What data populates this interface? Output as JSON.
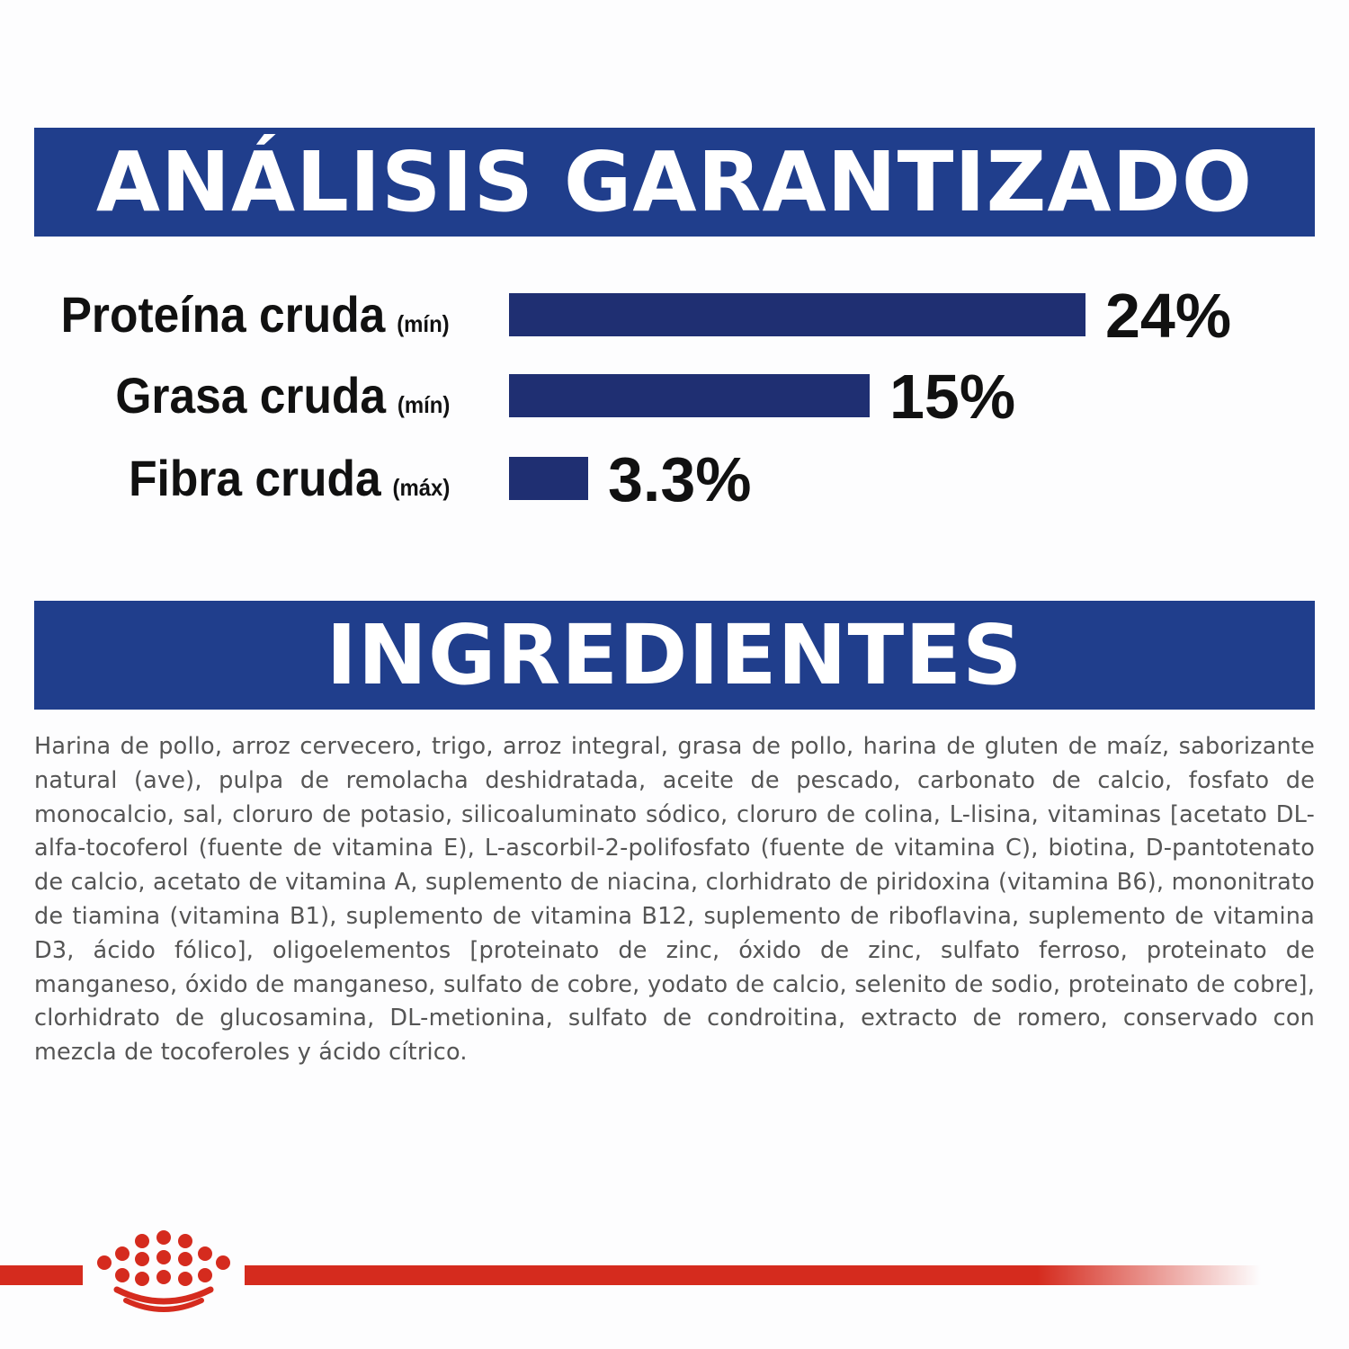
{
  "analysis": {
    "title": "ANÁLISIS GARANTIZADO",
    "rows": [
      {
        "name": "Proteína cruda",
        "qualifier": "(mín)",
        "value": 24,
        "value_label": "24%"
      },
      {
        "name": "Grasa cruda",
        "qualifier": "(mín)",
        "value": 15,
        "value_label": "15%"
      },
      {
        "name": "Fibra cruda",
        "qualifier": "(máx)",
        "value": 3.3,
        "value_label": "3.3%"
      }
    ]
  },
  "ingredients": {
    "title": "INGREDIENTES",
    "text": "Harina de pollo, arroz cervecero, trigo, arroz integral, grasa de pollo, harina de gluten de maíz, saborizante natural (ave), pulpa de remolacha deshidratada, aceite de pescado, carbonato de calcio, fosfato de monocalcio, sal, cloruro de potasio, silicoaluminato sódico, cloruro de colina, L-lisina, vitaminas [acetato DL-alfa-tocoferol (fuente de vitamina E), L-ascorbil-2-polifosfato (fuente de vitamina C), biotina, D-pantotenato de calcio, acetato de vitamina A, suplemento de niacina, clorhidrato de piridoxina (vitamina B6), mononitrato de tiamina (vitamina B1), suplemento de vitamina B12, suplemento de riboflavina, suplemento de vitamina D3, ácido fólico], oligoelementos [proteinato de zinc, óxido de zinc, sulfato ferroso, proteinato de manganeso, óxido de manganeso, sulfato de cobre, yodato de calcio, selenito de sodio, proteinato de cobre], clorhidrato de glucosamina, DL-metionina, sulfato de condroitina, extracto de romero, conservado con mezcla de tocoferoles y ácido cítrico."
  },
  "colors": {
    "banner": "#203e8c",
    "bar": "#1f2f72",
    "brand_red": "#d52b1e"
  },
  "footer": {
    "logo_icon": "crown-logo-icon"
  }
}
